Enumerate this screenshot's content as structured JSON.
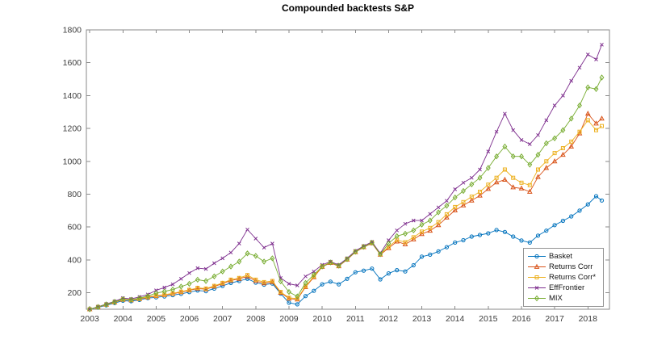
{
  "chart_data": {
    "type": "line",
    "title": "Compounded backtests S&P",
    "xlabel": "",
    "ylabel": "",
    "xlim": [
      2002.9,
      2018.65
    ],
    "ylim": [
      100,
      1800
    ],
    "x_ticks": [
      2003,
      2004,
      2005,
      2006,
      2007,
      2008,
      2009,
      2010,
      2011,
      2012,
      2013,
      2014,
      2015,
      2016,
      2017,
      2018
    ],
    "y_ticks": [
      200,
      400,
      600,
      800,
      1000,
      1200,
      1400,
      1600,
      1800
    ],
    "grid": false,
    "legend_position": "bottom-right",
    "axis_color": "#8a8a8a",
    "tick_label_color": "#3d3d3d",
    "x": [
      2003,
      2003.25,
      2003.5,
      2003.75,
      2004,
      2004.25,
      2004.5,
      2004.75,
      2005,
      2005.25,
      2005.5,
      2005.75,
      2006,
      2006.25,
      2006.5,
      2006.75,
      2007,
      2007.25,
      2007.5,
      2007.75,
      2008,
      2008.25,
      2008.5,
      2008.75,
      2009,
      2009.25,
      2009.5,
      2009.75,
      2010,
      2010.25,
      2010.5,
      2010.75,
      2011,
      2011.25,
      2011.5,
      2011.75,
      2012,
      2012.25,
      2012.5,
      2012.75,
      2013,
      2013.25,
      2013.5,
      2013.75,
      2014,
      2014.25,
      2014.5,
      2014.75,
      2015,
      2015.25,
      2015.5,
      2015.75,
      2016,
      2016.25,
      2016.5,
      2016.75,
      2017,
      2017.25,
      2017.5,
      2017.75,
      2018,
      2018.25,
      2018.42
    ],
    "series": [
      {
        "name": "Basket",
        "color": "#0072BD",
        "marker": "circle",
        "values": [
          100,
          111,
          124,
          138,
          152,
          149,
          157,
          168,
          172,
          178,
          186,
          194,
          204,
          214,
          210,
          226,
          242,
          260,
          272,
          285,
          262,
          250,
          256,
          195,
          140,
          130,
          180,
          212,
          252,
          268,
          252,
          285,
          325,
          335,
          347,
          282,
          318,
          338,
          330,
          368,
          420,
          432,
          452,
          478,
          506,
          520,
          542,
          552,
          562,
          582,
          570,
          542,
          518,
          506,
          548,
          578,
          612,
          638,
          665,
          700,
          738,
          788,
          762
        ]
      },
      {
        "name": "Returns Corr",
        "color": "#D95319",
        "marker": "triangle",
        "values": [
          100,
          113,
          128,
          142,
          158,
          155,
          162,
          172,
          180,
          186,
          194,
          204,
          215,
          226,
          222,
          238,
          256,
          275,
          285,
          300,
          272,
          258,
          266,
          200,
          165,
          160,
          235,
          295,
          358,
          382,
          362,
          402,
          448,
          478,
          502,
          432,
          472,
          512,
          495,
          525,
          558,
          578,
          612,
          658,
          702,
          732,
          762,
          792,
          832,
          872,
          888,
          842,
          835,
          815,
          905,
          960,
          1000,
          1040,
          1090,
          1170,
          1290,
          1230,
          1260
        ]
      },
      {
        "name": "Returns Corr*",
        "color": "#EDB120",
        "marker": "square",
        "values": [
          100,
          114,
          129,
          143,
          160,
          157,
          164,
          175,
          183,
          189,
          197,
          207,
          218,
          230,
          226,
          242,
          260,
          280,
          290,
          308,
          280,
          265,
          272,
          205,
          170,
          165,
          240,
          300,
          362,
          386,
          366,
          406,
          452,
          482,
          506,
          436,
          480,
          522,
          508,
          538,
          572,
          595,
          630,
          678,
          722,
          752,
          785,
          815,
          858,
          900,
          950,
          900,
          870,
          855,
          950,
          1000,
          1050,
          1080,
          1120,
          1180,
          1250,
          1190,
          1215
        ]
      },
      {
        "name": "EffFrontier",
        "color": "#7E2F8E",
        "marker": "x",
        "values": [
          100,
          115,
          132,
          148,
          168,
          163,
          175,
          190,
          215,
          232,
          252,
          285,
          320,
          350,
          345,
          380,
          410,
          445,
          500,
          585,
          530,
          475,
          500,
          290,
          255,
          245,
          300,
          330,
          370,
          390,
          370,
          410,
          455,
          485,
          510,
          440,
          520,
          580,
          620,
          640,
          640,
          680,
          720,
          760,
          830,
          870,
          900,
          950,
          1060,
          1180,
          1290,
          1190,
          1130,
          1105,
          1160,
          1250,
          1340,
          1400,
          1490,
          1570,
          1650,
          1620,
          1710
        ]
      },
      {
        "name": "MIX",
        "color": "#77AC30",
        "marker": "diamond",
        "values": [
          100,
          114,
          130,
          145,
          162,
          158,
          168,
          180,
          198,
          208,
          220,
          238,
          255,
          280,
          272,
          300,
          330,
          360,
          390,
          440,
          425,
          390,
          410,
          270,
          205,
          178,
          260,
          310,
          360,
          385,
          365,
          405,
          450,
          480,
          505,
          435,
          500,
          545,
          560,
          580,
          615,
          640,
          690,
          730,
          780,
          820,
          860,
          900,
          960,
          1030,
          1090,
          1030,
          1030,
          980,
          1040,
          1110,
          1140,
          1190,
          1260,
          1340,
          1450,
          1440,
          1510
        ]
      }
    ]
  }
}
